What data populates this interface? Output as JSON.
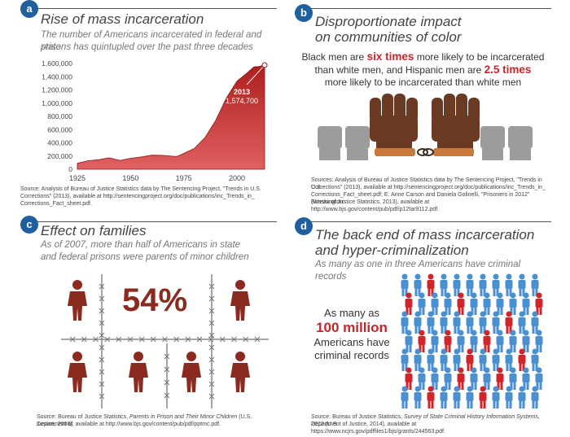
{
  "panel_a": {
    "badge": "a",
    "title": "Rise of mass incarceration",
    "subtitle_line1": "The number of Americans incarcerated in federal and state",
    "subtitle_line2": "prisons has quintupled over the past three decades",
    "annotation_year": "2013",
    "annotation_value": "1,574,700",
    "source_line1": "Source: Analysis of Bureau of Justice Statistics data by The Sentencing Project, \"Trends in U.S.",
    "source_line2": "Corrections\" (2013), available at http://sentencingproject.org/doc/publications/inc_Trends_in_",
    "source_line3": "Corrections_Fact_sheet.pdf."
  },
  "panel_b": {
    "badge": "b",
    "title_line1": "Disproportionate impact",
    "title_line2": "on communities of color",
    "stat_line1_pre": "Black men are ",
    "stat_line1_em": "six times",
    "stat_line1_post": " more likely to be incarcerated",
    "stat_line2_pre": "than white men, and Hispanic men are ",
    "stat_line2_em": "2.5 times",
    "stat_line3": "more likely to be incarcerated than white men",
    "source_line1": "Sources: Analysis of Bureau of Justice Statistics data by The Sentencing Project, \"Trends in U.S.",
    "source_line2": "Corrections\" (2013), available at http://sentencingproject.org/doc/publications/inc_Trends_in_",
    "source_line3": "Corrections_Fact_sheet.pdf; E. Anne Carson and Daniela Golinelli, \"Prisoners in 2012\" (Washington:",
    "source_line4": "Bureau of Justice Statistics, 2013), available at http://www.bjs.gov/content/pub/pdf/p12tar9112.pdf."
  },
  "panel_c": {
    "badge": "c",
    "title": "Effect on families",
    "subtitle_line1": "As of 2007, more than half of Americans in state",
    "subtitle_line2": "and federal prisons were parents of minor children",
    "big_stat": "54%",
    "source_line1_pre": "Source: Bureau of Justice Statistics, ",
    "source_line1_em": "Parents in Prison and Their Minor Children",
    "source_line1_post": " (U.S. Department of",
    "source_line2": "Justice, 2008), available at http://www.bjs.gov/content/pub/pdf/pptmc.pdf."
  },
  "panel_d": {
    "badge": "d",
    "title_line1": "The back end of mass incarceration",
    "title_line2": "and hyper-criminalization",
    "subtitle": "As many as one in three Americans have criminal records",
    "stat_line1": "As many as",
    "stat_big": "100 million",
    "stat_line3": "Americans have",
    "stat_line4": "criminal records",
    "source_line1_pre": "Source: Bureau of Justice Statistics, ",
    "source_line1_em": "Survey of State Criminal History Information Systems, 2012",
    "source_line1_post": " (U.S.",
    "source_line2": "Department of Justice, 2014), available at https://www.ncjrs.gov/pdffiles1/bjs/grants/244563.pdf."
  },
  "colors": {
    "badge": "#1e5fa0",
    "red_dark": "#8b1a1a",
    "red": "#c0282d",
    "brown": "#6b3a22",
    "blue": "#3d8bc9",
    "gray": "#999999"
  },
  "chart_data": {
    "type": "area",
    "title": "Rise of mass incarceration",
    "xlabel": "",
    "ylabel": "",
    "xlim": [
      1925,
      2013
    ],
    "ylim": [
      0,
      1600000
    ],
    "x_ticks": [
      "1925",
      "1950",
      "1975",
      "2000"
    ],
    "y_ticks": [
      "0",
      "200,000",
      "400,000",
      "600,000",
      "800,000",
      "1,000,000",
      "1,200,000",
      "1,400,000",
      "1,600,000"
    ],
    "x": [
      1925,
      1930,
      1935,
      1940,
      1945,
      1950,
      1955,
      1960,
      1965,
      1970,
      1972,
      1975,
      1980,
      1985,
      1990,
      1995,
      2000,
      2005,
      2008,
      2010,
      2013
    ],
    "values": [
      91669,
      129453,
      144180,
      173706,
      133649,
      166123,
      185780,
      212953,
      210895,
      196429,
      196092,
      240593,
      315974,
      480568,
      739980,
      1078542,
      1331278,
      1462866,
      1547742,
      1552669,
      1574700
    ],
    "annotation": {
      "x": 2013,
      "y": 1574700,
      "label": "2013"
    },
    "grid": false,
    "legend": "none"
  }
}
